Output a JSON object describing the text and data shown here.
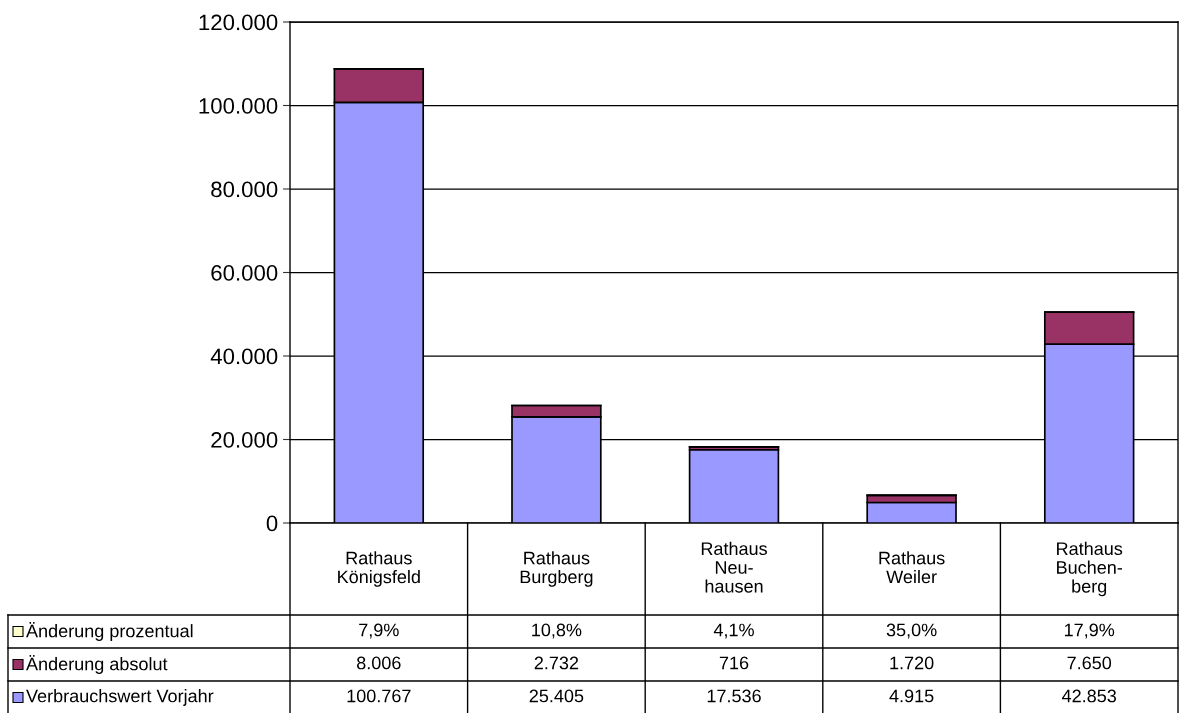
{
  "chart_data": {
    "type": "bar",
    "stacked": true,
    "categories": [
      "Rathaus\nKönigsfeld",
      "Rathaus\nBurgberg",
      "Rathaus\nNeu-\nhausen",
      "Rathaus\nWeiler",
      "Rathaus\nBuchen-\nberg"
    ],
    "series": [
      {
        "name": "Verbrauchswert Vorjahr",
        "color": "#9999ff",
        "values": [
          100767,
          25405,
          17536,
          4915,
          42853
        ],
        "value_labels": [
          "100.767",
          "25.405",
          "17.536",
          "4.915",
          "42.853"
        ]
      },
      {
        "name": "Änderung absolut",
        "color": "#993366",
        "values": [
          8006,
          2732,
          716,
          1720,
          7650
        ],
        "value_labels": [
          "8.006",
          "2.732",
          "716",
          "1.720",
          "7.650"
        ]
      },
      {
        "name": "Änderung prozentual",
        "color": "#ffffcc",
        "values": [
          7.9,
          10.8,
          4.1,
          35.0,
          17.9
        ],
        "value_labels": [
          "7,9%",
          "10,8%",
          "4,1%",
          "35,0%",
          "17,9%"
        ]
      }
    ],
    "ylim": [
      0,
      120000
    ],
    "yticks": [
      {
        "value": 0,
        "label": "0"
      },
      {
        "value": 20000,
        "label": "20.000"
      },
      {
        "value": 40000,
        "label": "40.000"
      },
      {
        "value": 60000,
        "label": "60.000"
      },
      {
        "value": 80000,
        "label": "80.000"
      },
      {
        "value": 100000,
        "label": "100.000"
      },
      {
        "value": 120000,
        "label": "120.000"
      }
    ],
    "grid": "y",
    "legend": "bottom left"
  }
}
